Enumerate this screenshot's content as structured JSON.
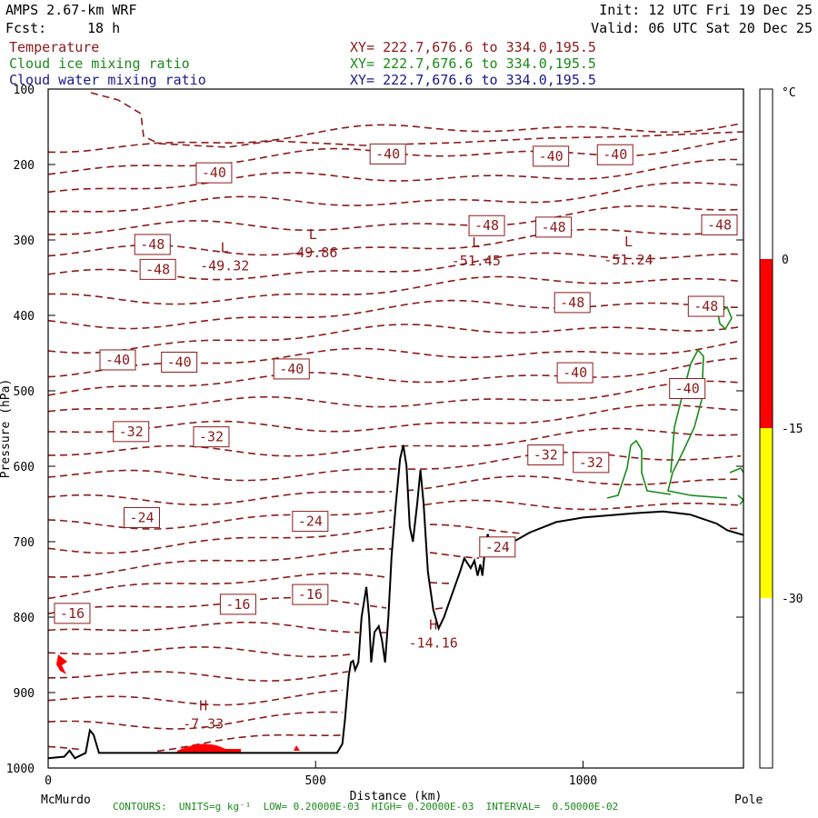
{
  "header": {
    "model": "AMPS 2.67-km WRF",
    "fcst_label": "Fcst:",
    "fcst_value": "18 h",
    "init": "Init: 12 UTC Fri 19 Dec 25",
    "valid": "Valid: 06 UTC Sat 20 Dec 25"
  },
  "fields": [
    {
      "name": "Temperature",
      "xy": "XY= 222.7,676.6 to 334.0,195.5",
      "color": "#8b1a1a"
    },
    {
      "name": "Cloud ice mixing ratio",
      "xy": "XY= 222.7,676.6 to 334.0,195.5",
      "color": "#1a8a1a"
    },
    {
      "name": "Cloud water mixing ratio",
      "xy": "XY= 222.7,676.6 to 334.0,195.5",
      "color": "#1a1a8b"
    }
  ],
  "footer": "CONTOURS:  UNITS=g kg⁻¹  LOW= 0.20000E-03  HIGH= 0.20000E-03  INTERVAL=  0.50000E-02",
  "chart_data": {
    "type": "cross-section contour",
    "xlabel": "Distance (km)",
    "ylabel": "Pressure (hPa)",
    "xlim": [
      0,
      1300
    ],
    "ylim": [
      1000,
      100
    ],
    "x_ticks": [
      0,
      500,
      1000
    ],
    "y_ticks": [
      100,
      200,
      300,
      400,
      500,
      600,
      700,
      800,
      900,
      1000
    ],
    "x_end_labels": {
      "left": "McMurdo",
      "right": "Pole"
    },
    "colorbar": {
      "unit": "°C",
      "ticks": [
        "0",
        "-15",
        "-30"
      ],
      "bands": [
        {
          "from": 0,
          "to": -15,
          "color": "#ff0000"
        },
        {
          "from": -15,
          "to": -30,
          "color": "#ffff00"
        }
      ]
    },
    "temperature_isotherms": [
      -48,
      -44,
      -40,
      -36,
      -32,
      -28,
      -24,
      -20,
      -16,
      -12,
      -8
    ],
    "contour_labels": [
      {
        "text": "-40",
        "x": 310,
        "p": 211
      },
      {
        "text": "-40",
        "x": 635,
        "p": 186
      },
      {
        "text": "-40",
        "x": 940,
        "p": 189
      },
      {
        "text": "-40",
        "x": 1060,
        "p": 187
      },
      {
        "text": "-48",
        "x": 195,
        "p": 306
      },
      {
        "text": "-48",
        "x": 205,
        "p": 339
      },
      {
        "text": "-48",
        "x": 820,
        "p": 281
      },
      {
        "text": "-48",
        "x": 945,
        "p": 283
      },
      {
        "text": "-48",
        "x": 1255,
        "p": 280
      },
      {
        "text": "-48",
        "x": 980,
        "p": 383
      },
      {
        "text": "-48",
        "x": 1230,
        "p": 388
      },
      {
        "text": "-40",
        "x": 130,
        "p": 459
      },
      {
        "text": "-40",
        "x": 245,
        "p": 462
      },
      {
        "text": "-40",
        "x": 455,
        "p": 471
      },
      {
        "text": "-40",
        "x": 985,
        "p": 476
      },
      {
        "text": "-40",
        "x": 1195,
        "p": 497
      },
      {
        "text": "-32",
        "x": 155,
        "p": 554
      },
      {
        "text": "-32",
        "x": 305,
        "p": 561
      },
      {
        "text": "-32",
        "x": 930,
        "p": 585
      },
      {
        "text": "-32",
        "x": 1015,
        "p": 595
      },
      {
        "text": "-24",
        "x": 175,
        "p": 668
      },
      {
        "text": "-24",
        "x": 490,
        "p": 673
      },
      {
        "text": "-24",
        "x": 840,
        "p": 707
      },
      {
        "text": "-16",
        "x": 45,
        "p": 795
      },
      {
        "text": "-16",
        "x": 355,
        "p": 783
      },
      {
        "text": "-16",
        "x": 490,
        "p": 770
      }
    ],
    "extrema": [
      {
        "type": "L",
        "value": "-49.86",
        "x": 495,
        "p": 313
      },
      {
        "type": "L",
        "value": "-49.32",
        "x": 330,
        "p": 331
      },
      {
        "type": "L",
        "value": "-51.45",
        "x": 800,
        "p": 324
      },
      {
        "type": "L",
        "value": "-51.24",
        "x": 1085,
        "p": 323
      },
      {
        "type": "H",
        "value": "-14.16",
        "x": 720,
        "p": 831
      },
      {
        "type": "H",
        "value": "-7.33",
        "x": 290,
        "p": 938
      }
    ],
    "terrain_surface": [
      [
        0,
        987
      ],
      [
        30,
        985
      ],
      [
        40,
        977
      ],
      [
        50,
        987
      ],
      [
        70,
        980
      ],
      [
        78,
        950
      ],
      [
        85,
        956
      ],
      [
        95,
        980
      ],
      [
        300,
        980
      ],
      [
        540,
        980
      ],
      [
        550,
        968
      ],
      [
        555,
        935
      ],
      [
        562,
        878
      ],
      [
        566,
        860
      ],
      [
        570,
        858
      ],
      [
        574,
        870
      ],
      [
        580,
        860
      ],
      [
        586,
        800
      ],
      [
        590,
        782
      ],
      [
        595,
        760
      ],
      [
        600,
        800
      ],
      [
        604,
        860
      ],
      [
        610,
        820
      ],
      [
        618,
        812
      ],
      [
        624,
        830
      ],
      [
        630,
        860
      ],
      [
        636,
        800
      ],
      [
        642,
        720
      ],
      [
        650,
        650
      ],
      [
        658,
        590
      ],
      [
        664,
        572
      ],
      [
        670,
        600
      ],
      [
        676,
        680
      ],
      [
        682,
        700
      ],
      [
        690,
        650
      ],
      [
        696,
        605
      ],
      [
        702,
        650
      ],
      [
        710,
        740
      ],
      [
        720,
        790
      ],
      [
        730,
        815
      ],
      [
        740,
        800
      ],
      [
        750,
        780
      ],
      [
        760,
        760
      ],
      [
        770,
        740
      ],
      [
        778,
        722
      ],
      [
        790,
        735
      ],
      [
        797,
        725
      ],
      [
        803,
        745
      ],
      [
        808,
        730
      ],
      [
        812,
        745
      ],
      [
        818,
        700
      ],
      [
        822,
        690
      ],
      [
        826,
        705
      ],
      [
        830,
        715
      ],
      [
        840,
        712
      ],
      [
        848,
        710
      ],
      [
        855,
        713
      ],
      [
        870,
        700
      ],
      [
        900,
        688
      ],
      [
        950,
        674
      ],
      [
        1000,
        668
      ],
      [
        1100,
        662
      ],
      [
        1150,
        660
      ],
      [
        1200,
        664
      ],
      [
        1250,
        676
      ],
      [
        1270,
        685
      ],
      [
        1290,
        689
      ],
      [
        1300,
        691
      ]
    ],
    "cloud_water_red_patches": [
      {
        "x": 300,
        "p": 975
      },
      {
        "x": 25,
        "p": 865
      }
    ],
    "cloud_ice_green_contours": 4
  }
}
